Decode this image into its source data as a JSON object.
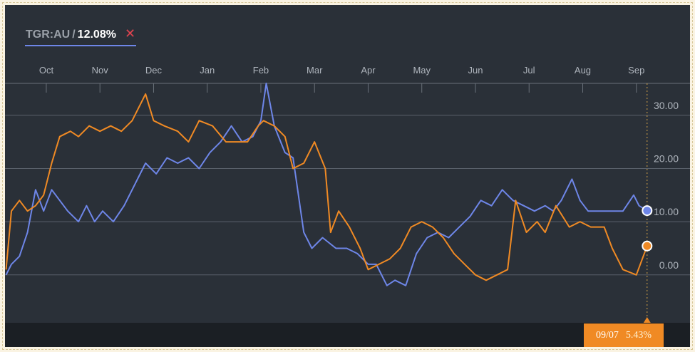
{
  "legend": {
    "symbol": "TGR:AU",
    "separator": "/",
    "value": "12.08%",
    "close_glyph": "✕"
  },
  "tooltip": {
    "date": "09/07",
    "value": "5.43%"
  },
  "colors": {
    "background": "#2a3038",
    "blue_series": "#6e86e8",
    "orange_series": "#f08a24",
    "grid": "#5a616b",
    "close": "#e0434f"
  },
  "chart_data": {
    "type": "line",
    "xlabel": "",
    "ylabel": "",
    "x_unit": "months since start of Sep",
    "x_ticks": [
      {
        "label": "Oct",
        "x": 1
      },
      {
        "label": "Nov",
        "x": 2
      },
      {
        "label": "Dec",
        "x": 3
      },
      {
        "label": "Jan",
        "x": 4
      },
      {
        "label": "Feb",
        "x": 5
      },
      {
        "label": "Mar",
        "x": 6
      },
      {
        "label": "Apr",
        "x": 7
      },
      {
        "label": "May",
        "x": 8
      },
      {
        "label": "Jun",
        "x": 9
      },
      {
        "label": "Jul",
        "x": 10
      },
      {
        "label": "Aug",
        "x": 11
      },
      {
        "label": "Sep",
        "x": 12
      }
    ],
    "y_ticks": [
      {
        "label": "30.00",
        "y": 30
      },
      {
        "label": "20.00",
        "y": 20
      },
      {
        "label": "10.00",
        "y": 10
      },
      {
        "label": "0.00",
        "y": 0
      }
    ],
    "xlim": [
      0.23,
      13.0
    ],
    "ylim": [
      -9,
      36
    ],
    "grid": true,
    "crosshair_x": 12.2,
    "series": [
      {
        "color": "#6e86e8",
        "end": {
          "x": 12.2,
          "y": 12.08
        },
        "points": [
          [
            0.25,
            0
          ],
          [
            0.35,
            2
          ],
          [
            0.5,
            3.5
          ],
          [
            0.65,
            8
          ],
          [
            0.8,
            16
          ],
          [
            0.95,
            12
          ],
          [
            1.1,
            16
          ],
          [
            1.25,
            14
          ],
          [
            1.4,
            12
          ],
          [
            1.6,
            10
          ],
          [
            1.75,
            13
          ],
          [
            1.9,
            10
          ],
          [
            2.05,
            12
          ],
          [
            2.25,
            10
          ],
          [
            2.45,
            13
          ],
          [
            2.65,
            17
          ],
          [
            2.85,
            21
          ],
          [
            3.05,
            19
          ],
          [
            3.25,
            22
          ],
          [
            3.45,
            21
          ],
          [
            3.65,
            22
          ],
          [
            3.85,
            20
          ],
          [
            4.05,
            23
          ],
          [
            4.25,
            25
          ],
          [
            4.45,
            28
          ],
          [
            4.65,
            25
          ],
          [
            4.85,
            26
          ],
          [
            5.0,
            29
          ],
          [
            5.1,
            36
          ],
          [
            5.25,
            28
          ],
          [
            5.45,
            23
          ],
          [
            5.6,
            22
          ],
          [
            5.8,
            8
          ],
          [
            5.95,
            5
          ],
          [
            6.15,
            7
          ],
          [
            6.4,
            5
          ],
          [
            6.6,
            5
          ],
          [
            6.8,
            4
          ],
          [
            7.0,
            2
          ],
          [
            7.15,
            2
          ],
          [
            7.35,
            -2
          ],
          [
            7.5,
            -1
          ],
          [
            7.7,
            -2
          ],
          [
            7.9,
            4
          ],
          [
            8.1,
            7
          ],
          [
            8.3,
            8
          ],
          [
            8.5,
            7
          ],
          [
            8.7,
            9
          ],
          [
            8.9,
            11
          ],
          [
            9.1,
            14
          ],
          [
            9.3,
            13
          ],
          [
            9.5,
            16
          ],
          [
            9.7,
            14
          ],
          [
            9.9,
            13
          ],
          [
            10.1,
            12
          ],
          [
            10.3,
            13
          ],
          [
            10.45,
            12
          ],
          [
            10.6,
            14
          ],
          [
            10.8,
            18
          ],
          [
            10.95,
            14
          ],
          [
            11.1,
            12
          ],
          [
            11.3,
            12
          ],
          [
            11.5,
            12
          ],
          [
            11.75,
            12
          ],
          [
            11.95,
            15
          ],
          [
            12.05,
            13
          ],
          [
            12.2,
            12.08
          ]
        ]
      },
      {
        "color": "#f08a24",
        "end": {
          "x": 12.2,
          "y": 5.43
        },
        "points": [
          [
            0.25,
            1
          ],
          [
            0.35,
            12
          ],
          [
            0.5,
            14
          ],
          [
            0.65,
            12
          ],
          [
            0.8,
            13
          ],
          [
            0.95,
            15
          ],
          [
            1.1,
            21
          ],
          [
            1.25,
            26
          ],
          [
            1.45,
            27
          ],
          [
            1.6,
            26
          ],
          [
            1.8,
            28
          ],
          [
            2.0,
            27
          ],
          [
            2.2,
            28
          ],
          [
            2.4,
            27
          ],
          [
            2.6,
            29
          ],
          [
            2.85,
            34
          ],
          [
            3.0,
            29
          ],
          [
            3.2,
            28
          ],
          [
            3.45,
            27
          ],
          [
            3.65,
            25
          ],
          [
            3.85,
            29
          ],
          [
            4.1,
            28
          ],
          [
            4.35,
            25
          ],
          [
            4.55,
            25
          ],
          [
            4.75,
            25
          ],
          [
            4.95,
            28
          ],
          [
            5.05,
            29
          ],
          [
            5.25,
            28
          ],
          [
            5.45,
            26
          ],
          [
            5.6,
            20
          ],
          [
            5.8,
            21
          ],
          [
            6.0,
            25
          ],
          [
            6.2,
            20
          ],
          [
            6.3,
            8
          ],
          [
            6.45,
            12
          ],
          [
            6.65,
            9
          ],
          [
            6.85,
            5
          ],
          [
            7.0,
            1
          ],
          [
            7.2,
            2
          ],
          [
            7.4,
            3
          ],
          [
            7.6,
            5
          ],
          [
            7.8,
            9
          ],
          [
            8.0,
            10
          ],
          [
            8.2,
            9
          ],
          [
            8.4,
            7
          ],
          [
            8.6,
            4
          ],
          [
            8.8,
            2
          ],
          [
            9.0,
            0
          ],
          [
            9.2,
            -1
          ],
          [
            9.4,
            0
          ],
          [
            9.6,
            1
          ],
          [
            9.75,
            14
          ],
          [
            9.95,
            8
          ],
          [
            10.15,
            10
          ],
          [
            10.3,
            8
          ],
          [
            10.5,
            13
          ],
          [
            10.75,
            9
          ],
          [
            10.95,
            10
          ],
          [
            11.15,
            9
          ],
          [
            11.4,
            9
          ],
          [
            11.55,
            5
          ],
          [
            11.75,
            1
          ],
          [
            12.0,
            0
          ],
          [
            12.2,
            5.43
          ]
        ]
      }
    ]
  }
}
